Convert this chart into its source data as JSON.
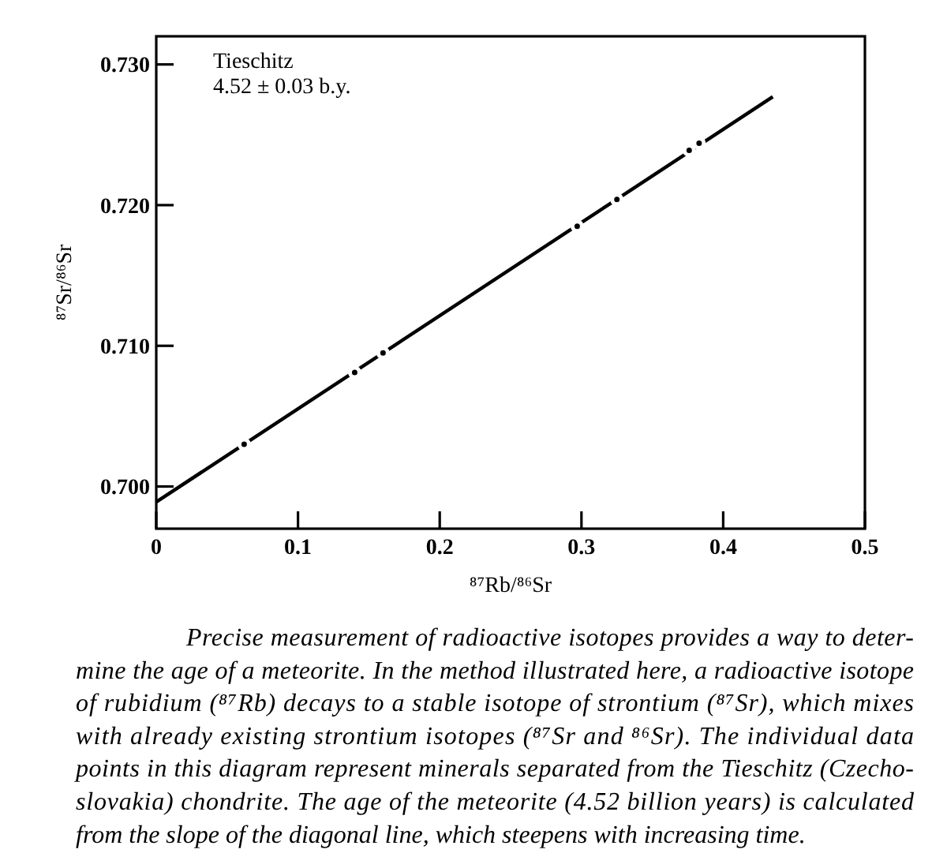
{
  "chart_data": {
    "type": "scatter",
    "title": "Tieschitz",
    "subtitle": "4.52 ± 0.03 b.y.",
    "xlabel": "⁸⁷Rb/⁸⁶Sr",
    "ylabel": "⁸⁷Sr/⁸⁶Sr",
    "xlim": [
      0,
      0.5
    ],
    "ylim": [
      0.697,
      0.732
    ],
    "xticks": [
      0,
      0.1,
      0.2,
      0.3,
      0.4,
      0.5
    ],
    "yticks": [
      {
        "value": 0.7,
        "label": "0.700"
      },
      {
        "value": 0.71,
        "label": "0.710"
      },
      {
        "value": 0.72,
        "label": "0.720"
      },
      {
        "value": 0.73,
        "label": "0.730"
      }
    ],
    "series": [
      {
        "type": "line",
        "color": "#000000",
        "x": [
          0,
          0.435
        ],
        "values": [
          0.6989,
          0.7277
        ]
      },
      {
        "color": "#000000",
        "marker": "circle",
        "x": [
          0.062,
          0.14,
          0.16,
          0.297,
          0.325,
          0.376,
          0.383
        ],
        "values": [
          0.703,
          0.7081,
          0.7095,
          0.7185,
          0.7204,
          0.7239,
          0.7244
        ]
      }
    ],
    "annotations": [
      "Precise measurement of radioactive isotopes provides a way to deter-\nmine the age of a meteorite. In the method illustrated here, a radioactive isotope\nof rubidium (⁸⁷Rb) decays to a stable isotope of strontium (⁸⁷Sr), which mixes\nwith already existing strontium isotopes (⁸⁷Sr and ⁸⁶Sr). The individual data\npoints in this diagram represent minerals separated from the Tieschitz (Czecho-\nslovakia) chondrite. The age of the meteorite (4.52 billion years) is calculated\nfrom the slope of the diagonal line, which steepens with increasing time."
    ]
  }
}
